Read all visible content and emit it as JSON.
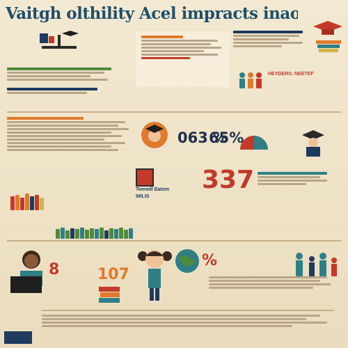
{
  "title": "Vaitgh olthility Acel impracts inaotin h mpac impact",
  "stats": {
    "pct_left": "063 %",
    "pct_right": "65%",
    "big_number": "337",
    "side_percent": "%",
    "bottom_number": "107",
    "left_digit": "8"
  },
  "labels": {
    "top_right_heading": "HEYDERS: NEETEF",
    "center_box": "Tomodl Eatom WILIS"
  },
  "colors": {
    "title": "#1f4f6b",
    "orange": "#e07a2c",
    "red": "#c33a2a",
    "teal": "#2f7f86",
    "green": "#4f8a3a",
    "navy": "#1f3a5f"
  },
  "icons": [
    "graduation-cap-icon",
    "globe-icon",
    "books-icon",
    "laptop-icon",
    "clock-icon"
  ]
}
